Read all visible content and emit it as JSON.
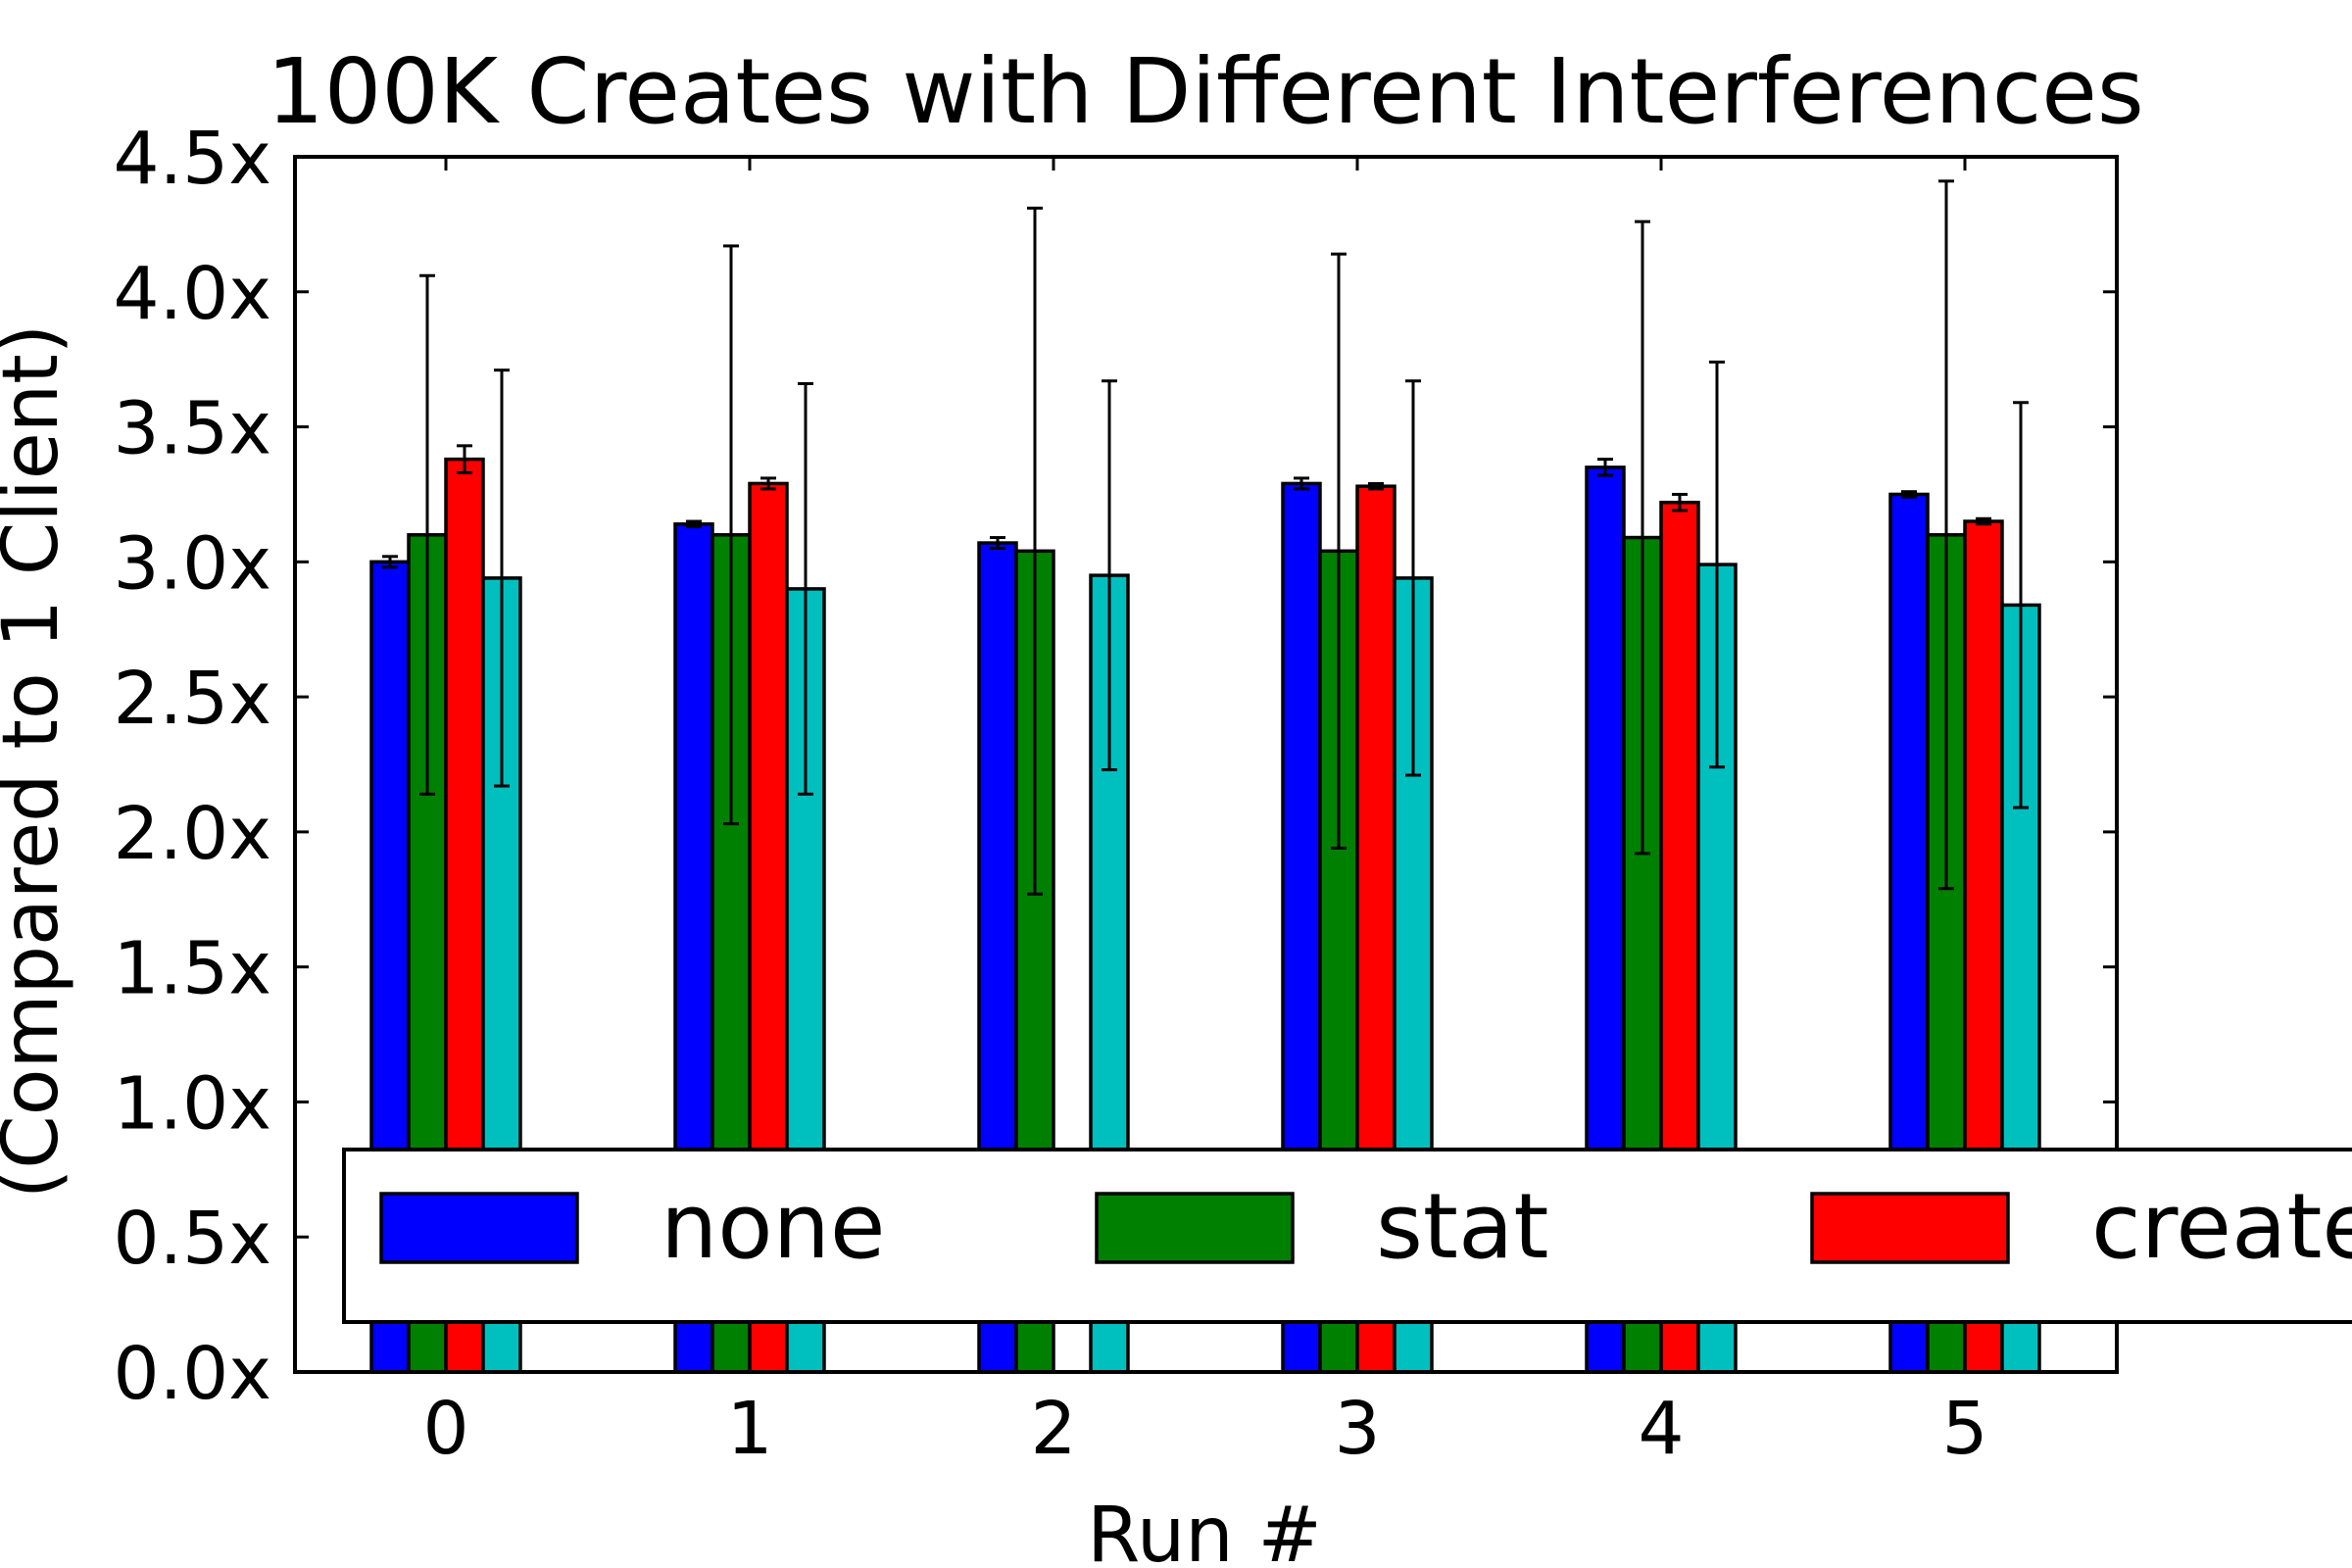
{
  "chart_data": {
    "type": "bar",
    "title": "100K Creates with Different Interferences",
    "xlabel": "Run #",
    "ylabel": "(Compared to 1 Client)",
    "categories": [
      "0",
      "1",
      "2",
      "3",
      "4",
      "5"
    ],
    "ylim": [
      0,
      4.5
    ],
    "yticks": [
      0.0,
      0.5,
      1.0,
      1.5,
      2.0,
      2.5,
      3.0,
      3.5,
      4.0,
      4.5
    ],
    "ytick_labels": [
      "0.0x",
      "0.5x",
      "1.0x",
      "1.5x",
      "2.0x",
      "2.5x",
      "3.0x",
      "3.5x",
      "4.0x",
      "4.5x"
    ],
    "grid": false,
    "legend": {
      "position": "bottom",
      "ncol": 3
    },
    "series": [
      {
        "name": "none",
        "color": "#0000ff",
        "values": [
          3.0,
          3.14,
          3.07,
          3.29,
          3.35,
          3.25
        ],
        "errors": [
          0.02,
          0.01,
          0.02,
          0.02,
          0.03,
          0.01
        ]
      },
      {
        "name": "stat",
        "color": "#008000",
        "values": [
          3.1,
          3.1,
          3.04,
          3.04,
          3.09,
          3.1
        ],
        "errors": [
          0.96,
          1.07,
          1.27,
          1.1,
          1.17,
          1.31
        ]
      },
      {
        "name": "create",
        "color": "#ff0000",
        "values": [
          3.38,
          3.29,
          0.0,
          3.28,
          3.22,
          3.15
        ],
        "errors": [
          0.05,
          0.02,
          0.0,
          0.01,
          0.03,
          0.01
        ]
      },
      {
        "name": "",
        "color": "#00bfbf",
        "values": [
          2.94,
          2.9,
          2.95,
          2.94,
          2.99,
          2.84
        ],
        "errors": [
          0.77,
          0.76,
          0.72,
          0.73,
          0.75,
          0.75
        ]
      }
    ]
  }
}
